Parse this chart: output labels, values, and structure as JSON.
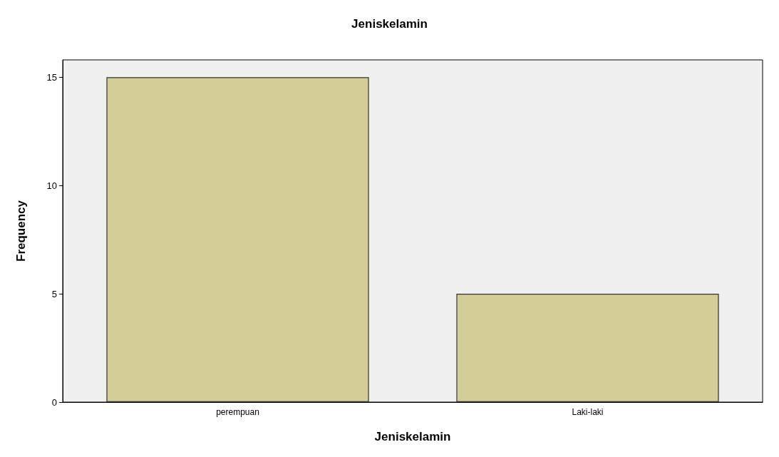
{
  "chart_data": {
    "type": "bar",
    "title": "Jeniskelamin",
    "xlabel": "Jeniskelamin",
    "ylabel": "Frequency",
    "categories": [
      "perempuan",
      "Laki-laki"
    ],
    "values": [
      15,
      5
    ],
    "color": "#d3cd98",
    "ylim": [
      0,
      15.8
    ],
    "yticks": [
      0,
      5,
      10,
      15
    ],
    "grid": false
  }
}
